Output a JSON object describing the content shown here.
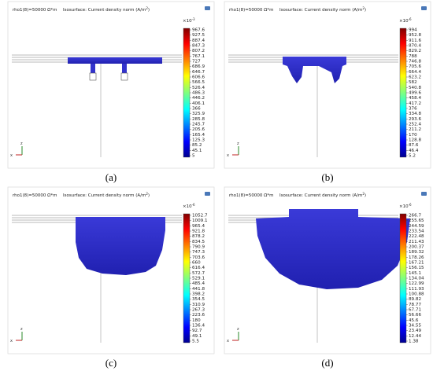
{
  "panels": [
    {
      "caption": "(a)",
      "header": {
        "left": "rho1(8)=50000 Ω*m",
        "title": "Isosurface: Current density norm (A/m",
        "title_sup": "2",
        "title_end": ")"
      },
      "colorbar": {
        "base": "×10",
        "power": "-3",
        "labels": [
          "967.6",
          "927.5",
          "887.4",
          "847.3",
          "807.2",
          "767.1",
          "727",
          "686.9",
          "646.7",
          "606.6",
          "566.5",
          "526.4",
          "486.3",
          "446.2",
          "406.1",
          "366",
          "325.9",
          "285.8",
          "245.7",
          "205.6",
          "165.4",
          "125.3",
          "85.2",
          "45.1",
          "5"
        ]
      },
      "axes": {
        "z": "z",
        "x": "x"
      }
    },
    {
      "caption": "(b)",
      "header": {
        "left": "rho1(8)=50000 Ω*m",
        "title": "Isosurface: Current density norm (A/m",
        "title_sup": "2",
        "title_end": ")"
      },
      "colorbar": {
        "base": "×10",
        "power": "-6",
        "labels": [
          "994",
          "952.8",
          "911.6",
          "870.4",
          "829.2",
          "788",
          "746.8",
          "705.6",
          "664.4",
          "623.2",
          "582",
          "540.8",
          "499.6",
          "458.4",
          "417.2",
          "376",
          "334.8",
          "293.6",
          "252.4",
          "211.2",
          "170",
          "128.8",
          "87.6",
          "46.4",
          "5.2"
        ]
      },
      "axes": {
        "z": "z",
        "x": "x"
      }
    },
    {
      "caption": "(c)",
      "header": {
        "left": "rho1(8)=50000 Ω*m",
        "title": "Isosurface: Current density norm (A/m",
        "title_sup": "2",
        "title_end": ")"
      },
      "colorbar": {
        "base": "×10",
        "power": "-6",
        "labels": [
          "1052.7",
          "1009.1",
          "965.4",
          "921.8",
          "878.2",
          "834.5",
          "790.9",
          "747.3",
          "703.6",
          "660",
          "616.4",
          "572.7",
          "529.1",
          "485.4",
          "441.8",
          "398.2",
          "354.5",
          "310.9",
          "267.3",
          "223.6",
          "180",
          "136.4",
          "92.7",
          "49.1",
          "5.5"
        ]
      },
      "axes": {
        "z": "z",
        "x": "x"
      }
    },
    {
      "caption": "(d)",
      "header": {
        "left": "rho1(8)=50000 Ω*m",
        "title": "Isosurface: Current density norm (A/m",
        "title_sup": "2",
        "title_end": ")"
      },
      "colorbar": {
        "base": "×10",
        "power": "-6",
        "labels": [
          "266.7",
          "255.65",
          "244.59",
          "233.54",
          "222.48",
          "211.43",
          "200.37",
          "189.32",
          "178.26",
          "167.21",
          "156.15",
          "145.1",
          "134.04",
          "122.99",
          "111.93",
          "100.88",
          "89.82",
          "78.77",
          "67.71",
          "56.66",
          "45.6",
          "34.55",
          "23.49",
          "12.44",
          "1.38"
        ]
      },
      "axes": {
        "z": "z",
        "x": "x"
      }
    }
  ]
}
